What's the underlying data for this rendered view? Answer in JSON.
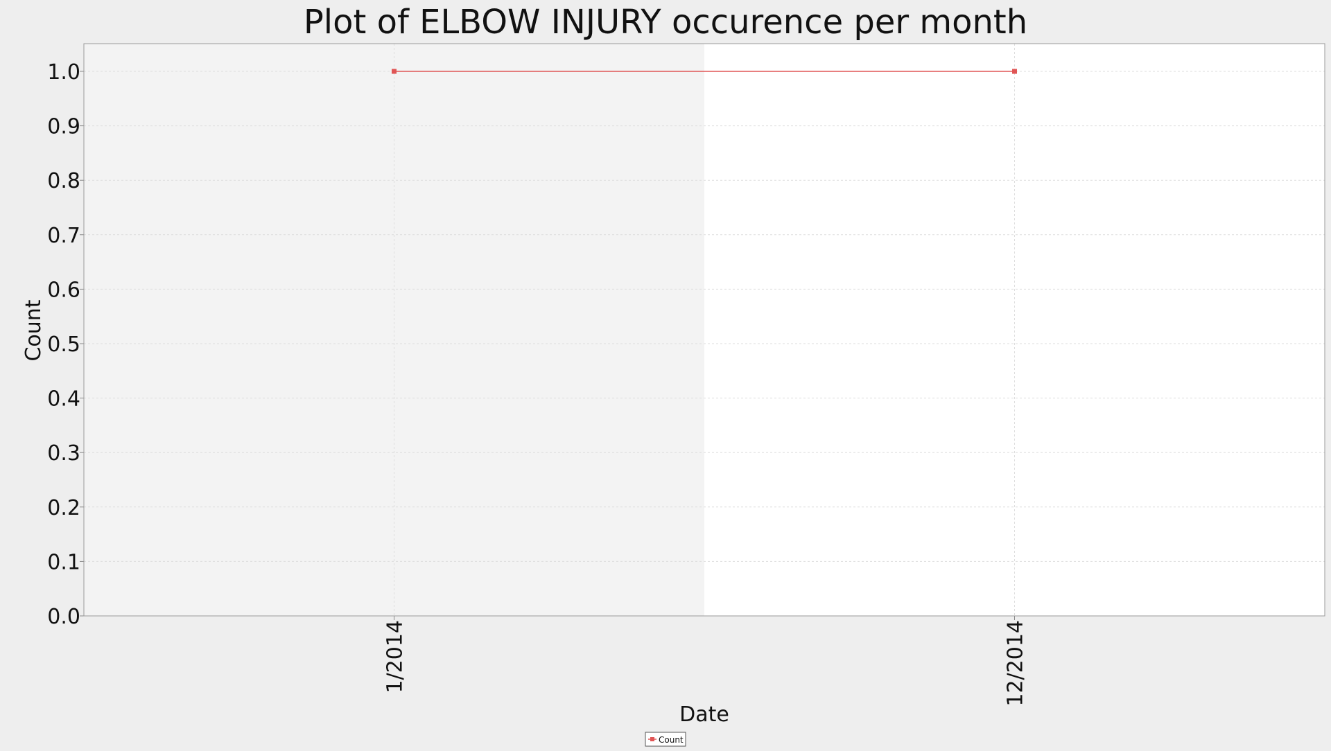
{
  "chart_data": {
    "type": "line",
    "title": "Plot of ELBOW INJURY occurence per month",
    "xlabel": "Date",
    "ylabel": "Count",
    "categories": [
      "1/2014",
      "12/2014"
    ],
    "series": [
      {
        "name": "Count",
        "color": "#e05555",
        "values": [
          1.0,
          1.0
        ]
      }
    ],
    "ylim": [
      0.0,
      1.0
    ],
    "yticks": [
      "0.0",
      "0.1",
      "0.2",
      "0.3",
      "0.4",
      "0.5",
      "0.6",
      "0.7",
      "0.8",
      "0.9",
      "1.0"
    ],
    "grid": true,
    "legend": "bottom-center",
    "colors": {
      "background": "#eeeeee",
      "plot_band_left": "#f3f3f3",
      "plot_band_right": "#ffffff",
      "gridline": "#dddddd"
    }
  }
}
